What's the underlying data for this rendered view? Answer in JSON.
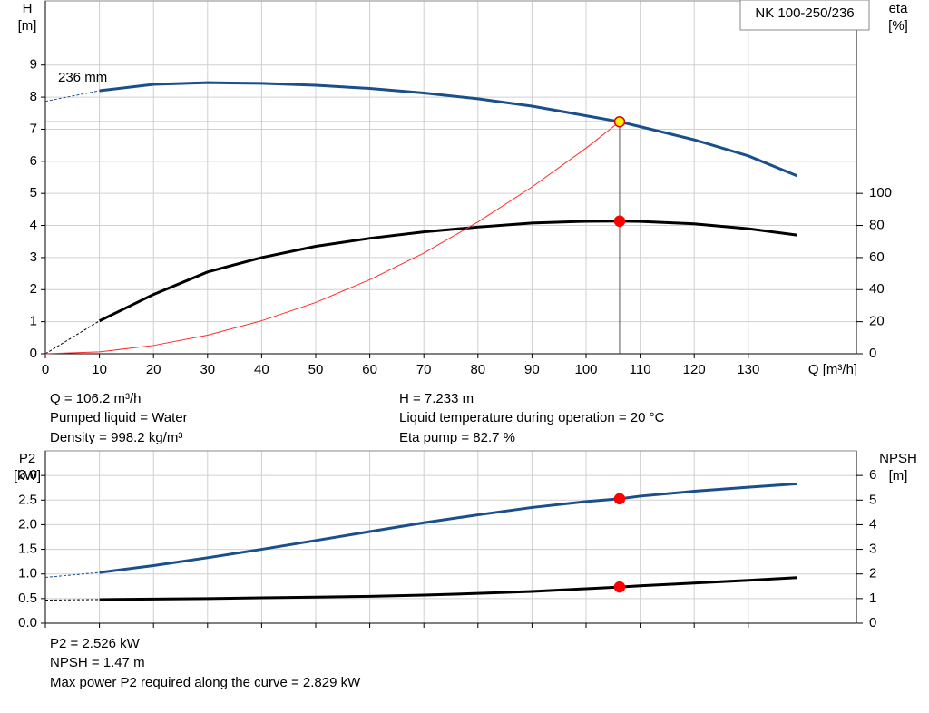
{
  "chart_data": [
    {
      "type": "line",
      "model_label": "NK 100-250/236",
      "y_label": "H",
      "y_unit": "[m]",
      "y2_label": "eta",
      "y2_unit": "[%]",
      "x_label": "Q [m³/h]",
      "annotation": "236 mm",
      "xlim": [
        0,
        150
      ],
      "xticks": [
        0,
        10,
        20,
        30,
        40,
        50,
        60,
        70,
        80,
        90,
        100,
        110,
        120,
        130
      ],
      "ylim": [
        0,
        11
      ],
      "yticks": [
        0,
        1,
        2,
        3,
        4,
        5,
        6,
        7,
        8,
        9
      ],
      "y2lim": [
        0,
        220
      ],
      "y2ticks": [
        0,
        20,
        40,
        60,
        80,
        100
      ],
      "grid": true,
      "series": [
        {
          "color": "#1b4f8c",
          "width": 3,
          "x": [
            10,
            20,
            30,
            40,
            50,
            60,
            70,
            80,
            90,
            100,
            106.2,
            110,
            120,
            130,
            139
          ],
          "values": [
            8.2,
            8.4,
            8.45,
            8.43,
            8.37,
            8.27,
            8.13,
            7.95,
            7.72,
            7.42,
            7.233,
            7.08,
            6.67,
            6.17,
            5.55
          ]
        },
        {
          "color": "#1b4f8c",
          "width": 1,
          "dashed": true,
          "x": [
            0,
            10
          ],
          "values": [
            7.87,
            8.2
          ]
        },
        {
          "color": "#000000",
          "width": 3,
          "axis": "y2",
          "x": [
            10,
            20,
            30,
            40,
            50,
            60,
            70,
            80,
            90,
            100,
            106.2,
            110,
            120,
            130,
            139
          ],
          "values": [
            20.5,
            37,
            51,
            60,
            67,
            72,
            76,
            79,
            81.5,
            82.6,
            82.7,
            82.5,
            81,
            78,
            74
          ]
        },
        {
          "color": "#000000",
          "width": 1,
          "dashed": true,
          "axis": "y2",
          "x": [
            0,
            10
          ],
          "values": [
            0,
            20.5
          ]
        },
        {
          "color": "#ff2a2a",
          "width": 1,
          "x": [
            0,
            10,
            20,
            30,
            40,
            50,
            60,
            70,
            80,
            90,
            100,
            106.2
          ],
          "values": [
            0,
            0.06,
            0.26,
            0.58,
            1.03,
            1.6,
            2.31,
            3.14,
            4.11,
            5.2,
            6.41,
            7.233
          ]
        }
      ],
      "markers": [
        {
          "x": 106.2,
          "y": 7.233,
          "color": "#ffee00",
          "stroke": "#e00000",
          "guides": true
        },
        {
          "x": 106.2,
          "y": 82.7,
          "axis": "y2",
          "color": "#ff0000"
        }
      ],
      "info_left": [
        "Q = 106.2 m³/h",
        "Pumped liquid = Water",
        "Density = 998.2 kg/m³"
      ],
      "info_right": [
        "H = 7.233 m",
        "Liquid temperature during operation = 20 °C",
        "Eta pump = 82.7 %"
      ]
    },
    {
      "type": "line",
      "y_label": "P2",
      "y_unit": "[kW]",
      "y2_label": "NPSH",
      "y2_unit": "[m]",
      "xlim": [
        0,
        150
      ],
      "xticks": [
        0,
        10,
        20,
        30,
        40,
        50,
        60,
        70,
        80,
        90,
        100,
        110,
        120,
        130
      ],
      "ylim": [
        0,
        3.5
      ],
      "yticks": [
        {
          "value": 0,
          "label": "0.0"
        },
        0.5,
        {
          "value": 1,
          "label": "1.0"
        },
        1.5,
        {
          "value": 2,
          "label": "2.0"
        },
        2.5,
        {
          "value": 3,
          "label": "3.0"
        }
      ],
      "y2lim": [
        0,
        7
      ],
      "y2ticks": [
        0,
        1,
        2,
        3,
        4,
        5,
        6
      ],
      "grid": true,
      "series": [
        {
          "color": "#1b4f8c",
          "width": 3,
          "x": [
            10,
            20,
            30,
            40,
            50,
            60,
            70,
            80,
            90,
            100,
            106.2,
            110,
            120,
            130,
            139
          ],
          "values": [
            1.03,
            1.17,
            1.33,
            1.5,
            1.68,
            1.86,
            2.04,
            2.2,
            2.35,
            2.47,
            2.526,
            2.58,
            2.68,
            2.76,
            2.829
          ]
        },
        {
          "color": "#1b4f8c",
          "width": 1,
          "dashed": true,
          "x": [
            0,
            10
          ],
          "values": [
            0.93,
            1.03
          ]
        },
        {
          "color": "#000000",
          "width": 3,
          "axis": "y2",
          "x": [
            10,
            20,
            30,
            40,
            50,
            60,
            70,
            80,
            90,
            100,
            106.2,
            110,
            120,
            130,
            139
          ],
          "values": [
            0.96,
            0.98,
            1.0,
            1.03,
            1.06,
            1.09,
            1.14,
            1.21,
            1.29,
            1.4,
            1.47,
            1.52,
            1.63,
            1.74,
            1.85
          ]
        },
        {
          "color": "#000000",
          "width": 1,
          "dashed": true,
          "axis": "y2",
          "x": [
            0,
            10
          ],
          "values": [
            0.94,
            0.96
          ]
        }
      ],
      "markers": [
        {
          "x": 106.2,
          "y": 2.526,
          "color": "#ff0000"
        },
        {
          "x": 106.2,
          "y": 1.47,
          "axis": "y2",
          "color": "#ff0000"
        }
      ],
      "info_left": [
        "P2 = 2.526 kW",
        "NPSH = 1.47 m",
        "Max power P2 required along the curve = 2.829 kW"
      ]
    }
  ]
}
